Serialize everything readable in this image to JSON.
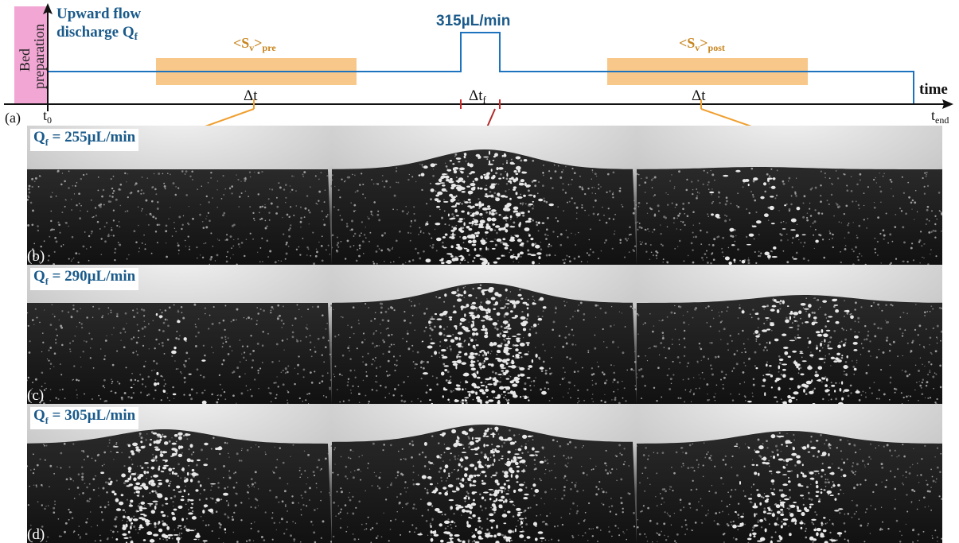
{
  "timeline": {
    "panel_label": "(a)",
    "bed_preparation": [
      "Bed",
      "preparation"
    ],
    "flow_title_line1": "Upward flow",
    "flow_title_line2": "discharge Q",
    "flow_title_sub": "f",
    "pulse_label": "315µL/min",
    "s_pre_main": "<S",
    "s_pre_sub1": "v",
    "s_pre_close": ">",
    "s_pre_sub2": "pre",
    "s_post_main": "<S",
    "s_post_sub1": "v",
    "s_post_close": ">",
    "s_post_sub2": "post",
    "delta_t": "Δt",
    "delta_tf_main": "Δt",
    "delta_tf_sub": "f",
    "t0_main": "t",
    "t0_sub": "0",
    "tend_main": "t",
    "tend_sub": "end",
    "time_label": "time",
    "colors": {
      "flow": "#1e73be",
      "window": "#f8c88a",
      "window_text": "#c8841c",
      "bed": "#f2a6d4",
      "pulse_marker": "#cc2a2a",
      "connector": "#f0a030",
      "title": "#1a5a8a"
    }
  },
  "rows": [
    {
      "panel_label": "(b)",
      "q_main": "Q",
      "q_sub": "f",
      "q_value": " = 255µL/min"
    },
    {
      "panel_label": "(c)",
      "q_main": "Q",
      "q_sub": "f",
      "q_value": " = 290µL/min"
    },
    {
      "panel_label": "(d)",
      "q_main": "Q",
      "q_sub": "f",
      "q_value": " = 305µL/min"
    }
  ]
}
